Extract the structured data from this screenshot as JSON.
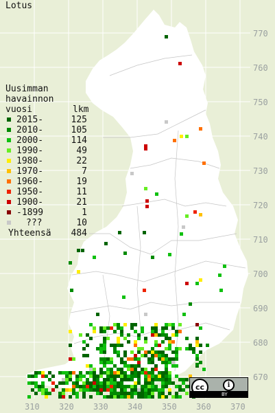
{
  "title": "Lotus",
  "y_ticks": [
    "770",
    "760",
    "750",
    "740",
    "730",
    "720",
    "710",
    "700",
    "690",
    "680",
    "670"
  ],
  "x_ticks": [
    "310",
    "320",
    "330",
    "340",
    "350",
    "360",
    "370"
  ],
  "legend": {
    "header_line1": "Uusimman",
    "header_line2": "havainnon",
    "header_col1": "vuosi",
    "header_col2": "lkm",
    "rows": [
      {
        "label": "2015-",
        "count": "125",
        "color": "#006400"
      },
      {
        "label": "2010-",
        "count": "105",
        "color": "#008a00"
      },
      {
        "label": "2000-",
        "count": "114",
        "color": "#10c010"
      },
      {
        "label": "1990-",
        "count": "49",
        "color": "#66ee22"
      },
      {
        "label": "1980-",
        "count": "22",
        "color": "#ffee00"
      },
      {
        "label": "1970-",
        "count": "7",
        "color": "#ffc000"
      },
      {
        "label": "1960-",
        "count": "19",
        "color": "#ff7000"
      },
      {
        "label": "1950-",
        "count": "11",
        "color": "#ee2200"
      },
      {
        "label": "1900-",
        "count": "21",
        "color": "#cc0000"
      },
      {
        "label": "-1899",
        "count": "1",
        "color": "#880000"
      },
      {
        "label": "???",
        "count": "10",
        "color": "#c8c8c8"
      }
    ],
    "total_label": "Yhteensä",
    "total_count": "484"
  },
  "license": {
    "icon": "cc-by-icon",
    "text": "BY"
  }
}
